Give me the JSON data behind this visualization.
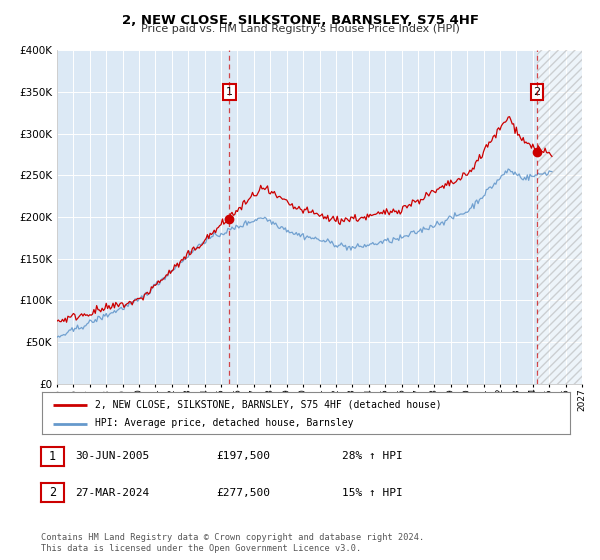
{
  "title": "2, NEW CLOSE, SILKSTONE, BARNSLEY, S75 4HF",
  "subtitle": "Price paid vs. HM Land Registry's House Price Index (HPI)",
  "hpi_label": "HPI: Average price, detached house, Barnsley",
  "price_label": "2, NEW CLOSE, SILKSTONE, BARNSLEY, S75 4HF (detached house)",
  "sale1_date": "30-JUN-2005",
  "sale1_price": 197500,
  "sale1_hpi_pct": "28% ↑ HPI",
  "sale2_date": "27-MAR-2024",
  "sale2_price": 277500,
  "sale2_hpi_pct": "15% ↑ HPI",
  "copyright": "Contains HM Land Registry data © Crown copyright and database right 2024.\nThis data is licensed under the Open Government Licence v3.0.",
  "price_color": "#cc0000",
  "hpi_color": "#6699cc",
  "bg_color": "#dce9f5",
  "plot_bg": "#ffffff",
  "grid_color": "#c8d8e8",
  "ylim": [
    0,
    400000
  ],
  "sale1_year": 2005.5,
  "sale2_year": 2024.25,
  "xmin": 1995,
  "xmax": 2027
}
